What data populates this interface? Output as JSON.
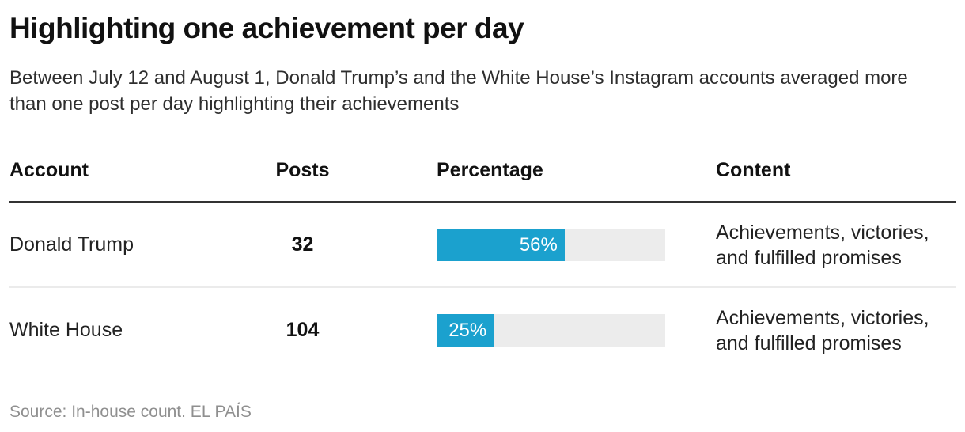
{
  "header": {
    "title": "Highlighting one achievement per day",
    "subtitle": "Between July 12 and August 1, Donald Trump’s and the White House’s Instagram accounts averaged more than one post per day highlighting their achievements"
  },
  "table": {
    "columns": [
      "Account",
      "Posts",
      "Percentage",
      "Content"
    ],
    "rows": [
      {
        "account": "Donald Trump",
        "posts": "32",
        "percentage": 56,
        "percentage_label": "56%",
        "content": "Achievements, victories, and fulfilled promises"
      },
      {
        "account": "White House",
        "posts": "104",
        "percentage": 25,
        "percentage_label": "25%",
        "content": "Achievements, victories, and fulfilled promises"
      }
    ]
  },
  "footer": {
    "source": "Source: In-house count. EL PAÍS"
  },
  "colors": {
    "bar_fill": "#1ba1ce",
    "bar_track": "#ececec",
    "rule_dark": "#333333",
    "row_divider": "#ebebeb",
    "source_text": "#8f8f8f"
  },
  "chart_data": {
    "type": "bar",
    "categories": [
      "Donald Trump",
      "White House"
    ],
    "series": [
      {
        "name": "Posts",
        "values": [
          32,
          104
        ]
      },
      {
        "name": "Percentage",
        "values": [
          56,
          25
        ]
      }
    ],
    "title": "Highlighting one achievement per day",
    "xlabel": "",
    "ylabel": "Percentage",
    "value_suffix": "%",
    "xlim": [
      0,
      100
    ],
    "legend_position": "none",
    "grid": false,
    "annotations": [
      "56%",
      "25%",
      "Achievements, victories, and fulfilled promises"
    ]
  }
}
